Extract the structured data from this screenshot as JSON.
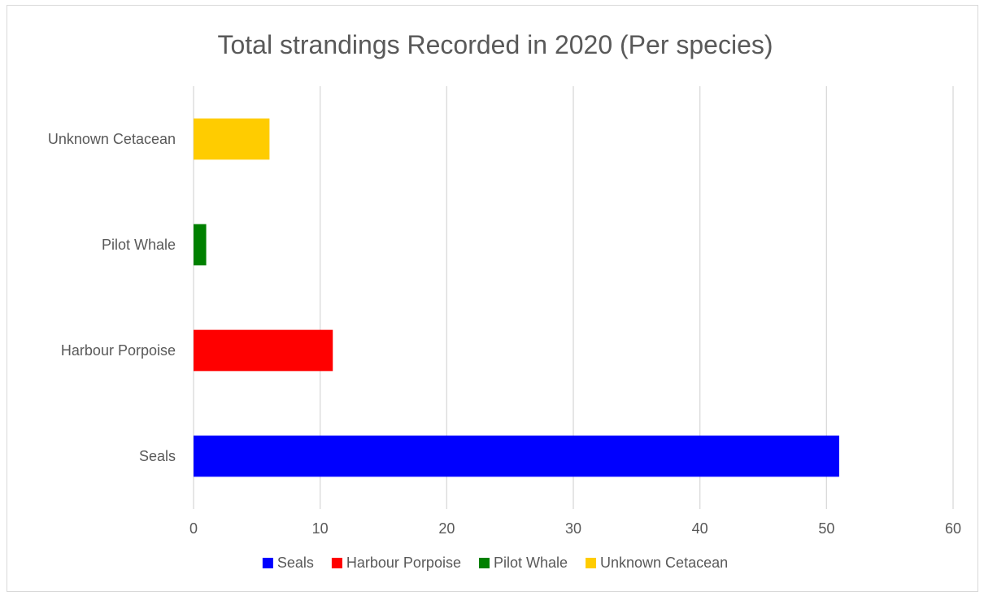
{
  "chart_data": {
    "type": "bar",
    "orientation": "horizontal",
    "title": "Total strandings Recorded in 2020 (Per species)",
    "xlabel": "",
    "ylabel": "",
    "categories": [
      "Seals",
      "Harbour Porpoise",
      "Pilot Whale",
      "Unknown Cetacean"
    ],
    "values": [
      51,
      11,
      1,
      6
    ],
    "colors": [
      "#0000FF",
      "#FF0000",
      "#008000",
      "#FFCC00"
    ],
    "xlim": [
      0,
      60
    ],
    "xticks": [
      "0",
      "10",
      "20",
      "30",
      "40",
      "50",
      "60"
    ],
    "grid": "vertical",
    "legend_placement": "bottom",
    "legend": [
      "Seals",
      "Harbour Porpoise",
      "Pilot Whale",
      "Unknown Cetacean"
    ]
  }
}
